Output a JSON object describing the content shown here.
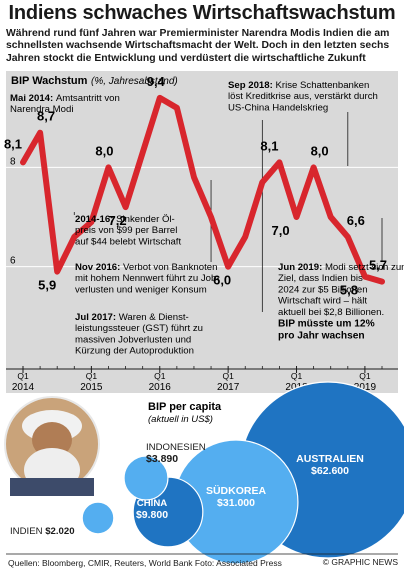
{
  "header": {
    "title": "Indiens schwaches Wirtschaftswachstum",
    "subtitle": "Während rund fünf Jahren war Premierminister Narendra Modis Indien die am schnellsten wachsende Wirtschaftsmacht der Welt. Doch in den letzten sechs Jahren stockt die Entwicklung und verdüstert die wirtschaftliche Zukunft"
  },
  "colors": {
    "line": "#d8262d",
    "panel": "#d9d9d9",
    "bubble_dark": "#1f74c2",
    "bubble_light": "#54aef0",
    "text_blue": "#1f5fa8",
    "marker": "#1a1a1a"
  },
  "chart_data": [
    {
      "type": "line",
      "title": "BIP Wachstum",
      "title_unit": "(%, Jahresabstand)",
      "x_tick_labels": [
        {
          "q": "Q1",
          "year": "2014"
        },
        {
          "q": "Q1",
          "year": "2015"
        },
        {
          "q": "Q1",
          "year": "2016"
        },
        {
          "q": "Q1",
          "year": "2017"
        },
        {
          "q": "Q1",
          "year": "2018"
        },
        {
          "q": "Q1",
          "year": "2019"
        }
      ],
      "y_ticks": [
        "8",
        "6"
      ],
      "ylim": [
        4.2,
        9.6
      ],
      "grid": true,
      "series": [
        {
          "points": [
            {
              "x": 2014.0,
              "y": 8.1
            },
            {
              "x": 2014.25,
              "y": 8.7
            },
            {
              "x": 2014.5,
              "y": 5.9
            },
            {
              "x": 2014.75,
              "y": 6.6
            },
            {
              "x": 2015.0,
              "y": 6.9
            },
            {
              "x": 2015.25,
              "y": 8.0
            },
            {
              "x": 2015.5,
              "y": 7.2
            },
            {
              "x": 2015.75,
              "y": 8.3
            },
            {
              "x": 2016.0,
              "y": 9.4
            },
            {
              "x": 2016.25,
              "y": 9.2
            },
            {
              "x": 2016.5,
              "y": 7.8
            },
            {
              "x": 2016.75,
              "y": 7.0
            },
            {
              "x": 2017.0,
              "y": 6.0
            },
            {
              "x": 2017.25,
              "y": 6.6
            },
            {
              "x": 2017.5,
              "y": 7.7
            },
            {
              "x": 2017.75,
              "y": 8.1
            },
            {
              "x": 2018.0,
              "y": 7.0
            },
            {
              "x": 2018.25,
              "y": 8.0
            },
            {
              "x": 2018.5,
              "y": 7.0
            },
            {
              "x": 2018.75,
              "y": 6.6
            },
            {
              "x": 2019.0,
              "y": 5.8
            },
            {
              "x": 2019.25,
              "y": 5.7
            }
          ]
        }
      ],
      "value_labels": [
        {
          "x": 2014.0,
          "y": 8.1,
          "text": "8,1"
        },
        {
          "x": 2014.25,
          "y": 8.7,
          "text": "8,7"
        },
        {
          "x": 2014.5,
          "y": 5.9,
          "text": "5,9"
        },
        {
          "x": 2015.25,
          "y": 8.0,
          "text": "8,0"
        },
        {
          "x": 2015.5,
          "y": 7.2,
          "text": "7,2"
        },
        {
          "x": 2016.0,
          "y": 9.4,
          "text": "9,4"
        },
        {
          "x": 2017.0,
          "y": 6.0,
          "text": "6,0"
        },
        {
          "x": 2017.75,
          "y": 8.1,
          "text": "8,1"
        },
        {
          "x": 2018.0,
          "y": 7.0,
          "text": "7,0"
        },
        {
          "x": 2018.25,
          "y": 8.0,
          "text": "8,0"
        },
        {
          "x": 2018.75,
          "y": 6.6,
          "text": "6,6"
        },
        {
          "x": 2019.0,
          "y": 5.8,
          "text": "5,8"
        },
        {
          "x": 2019.25,
          "y": 5.7,
          "text": "5,7"
        }
      ],
      "annotations": [
        {
          "x": 2014.25,
          "date": "Mai 2014:",
          "lines": [
            "Amtsantritt von",
            "Narendra Modi"
          ]
        },
        {
          "x": 2014.75,
          "date": "2014-16:",
          "lines": [
            "Sinkender Öl-",
            "preis von $99 per Barrel",
            "auf $44 belebt Wirtschaft"
          ]
        },
        {
          "x": 2016.75,
          "date": "Nov 2016:",
          "lines": [
            "Verbot von Banknoten",
            "mit hohem Nennwert führt zu Job-",
            "verlusten und weniger Konsum"
          ]
        },
        {
          "x": 2017.5,
          "date": "Jul 2017:",
          "lines": [
            "Waren & Dienst-",
            "leistungssteuer (GST) führt zu",
            "massiven Jobverlusten und",
            "Kürzung der Autoproduktion"
          ]
        },
        {
          "x": 2018.75,
          "date": "Sep 2018:",
          "lines": [
            "Krise Schattenbanken",
            "löst Kreditkrise aus, verstärkt durch",
            "US-China Handelskrieg"
          ]
        },
        {
          "x": 2019.25,
          "date": "Jun 2019:",
          "lines": [
            "Modi setzt sich zum",
            "Ziel, dass Indien bis",
            "2024 zur $5 Billionen",
            "Wirtschaft wird – hält",
            "aktuell bei $2,8 Billionen."
          ],
          "bold_lines": [
            "BIP müsste um 12%",
            "pro Jahr wachsen"
          ]
        }
      ]
    },
    {
      "type": "bubble",
      "title": "BIP per capita",
      "subtitle": "(aktuell in US$)",
      "items": [
        {
          "name": "INDIEN",
          "value": 2020,
          "label": "$2.020"
        },
        {
          "name": "INDONESIEN",
          "value": 3890,
          "label": "$3.890"
        },
        {
          "name": "CHINA",
          "value": 9800,
          "label": "$9.800"
        },
        {
          "name": "SÜDKOREA",
          "value": 31000,
          "label": "$31.000"
        },
        {
          "name": "AUSTRALIEN",
          "value": 62600,
          "label": "$62.600"
        }
      ]
    }
  ],
  "footer": {
    "sources": "Quellen: Bloomberg, CMIR, Reuters, World Bank  Foto: Associated Press",
    "brand": "© GRAPHIC NEWS"
  },
  "photo": {
    "icon": "portrait-photo-icon"
  }
}
